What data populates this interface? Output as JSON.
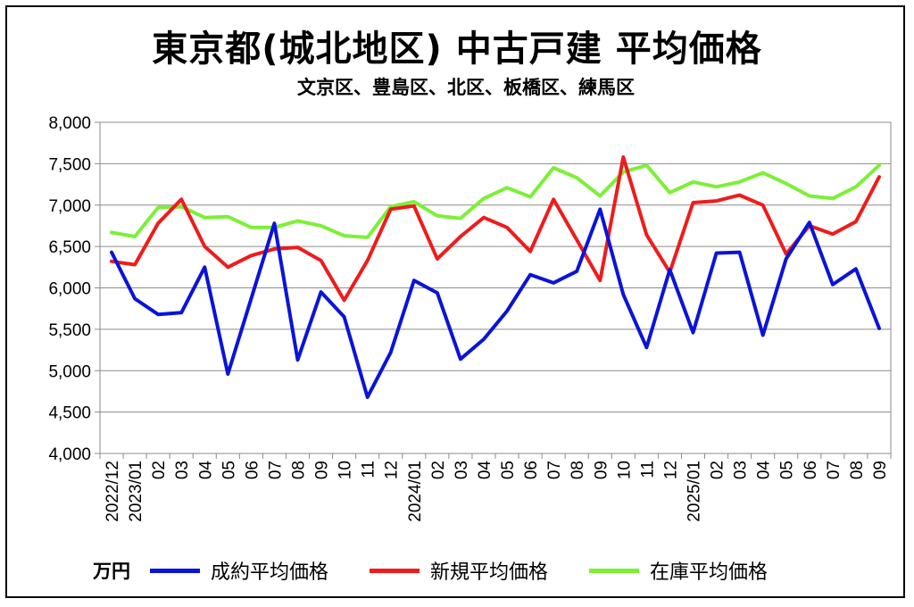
{
  "title": "東京都(城北地区) 中古戸建 平均価格",
  "subtitle": "文京区、豊島区、北区、板橋区、練馬区",
  "unit_label": "万円",
  "chart_data": {
    "type": "line",
    "x": [
      "2022/12",
      "2023/01",
      "02",
      "03",
      "04",
      "05",
      "06",
      "07",
      "08",
      "09",
      "10",
      "11",
      "12",
      "2024/01",
      "02",
      "03",
      "04",
      "05",
      "06",
      "07",
      "08",
      "09",
      "10",
      "11",
      "12",
      "2025/01",
      "02",
      "03",
      "04",
      "05",
      "06",
      "07",
      "08",
      "09"
    ],
    "ylim": [
      4000,
      8000
    ],
    "yticks": [
      "4,000",
      "4,500",
      "5,000",
      "5,500",
      "6,000",
      "6,500",
      "7,000",
      "7,500",
      "8,000"
    ],
    "grid": true,
    "legend_position": "bottom",
    "series": [
      {
        "name": "成約平均価格",
        "color": "#0a14d8",
        "values": [
          6430,
          5870,
          5680,
          5700,
          6250,
          4960,
          5870,
          6780,
          5130,
          5950,
          5650,
          4680,
          5220,
          6090,
          5940,
          5140,
          5380,
          5720,
          6160,
          6060,
          6200,
          6950,
          5920,
          5280,
          6220,
          5460,
          6420,
          6430,
          5430,
          6350,
          6790,
          6040,
          6230,
          5510
        ]
      },
      {
        "name": "新規平均価格",
        "color": "#ee1c1c",
        "values": [
          6320,
          6280,
          6780,
          7070,
          6500,
          6250,
          6390,
          6470,
          6490,
          6330,
          5850,
          6330,
          6950,
          6990,
          6350,
          6620,
          6850,
          6730,
          6440,
          7070,
          6580,
          6090,
          7580,
          6640,
          6190,
          7030,
          7050,
          7120,
          7000,
          6410,
          6750,
          6650,
          6800,
          7340
        ]
      },
      {
        "name": "在庫平均価格",
        "color": "#7cf036",
        "values": [
          6670,
          6620,
          6970,
          6980,
          6850,
          6860,
          6730,
          6730,
          6810,
          6750,
          6630,
          6610,
          6980,
          7040,
          6870,
          6840,
          7080,
          7210,
          7100,
          7450,
          7330,
          7110,
          7400,
          7480,
          7150,
          7280,
          7220,
          7280,
          7390,
          7260,
          7110,
          7080,
          7220,
          7480
        ]
      }
    ]
  }
}
